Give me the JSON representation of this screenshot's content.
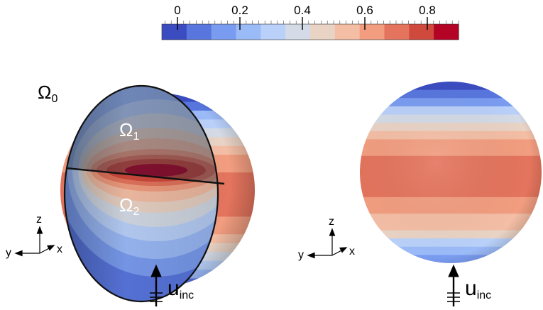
{
  "colorbar": {
    "tick_labels": [
      "0",
      "0.2",
      "0.4",
      "0.6",
      "0.8"
    ],
    "tick_values": [
      0,
      0.2,
      0.4,
      0.6,
      0.8
    ],
    "range": [
      -0.05,
      0.9
    ],
    "colors": [
      "#3b4cc0",
      "#5876de",
      "#7a9cf0",
      "#9bbaf8",
      "#b9d0f9",
      "#d4dbe6",
      "#e9d3c5",
      "#f4bea5",
      "#f29d80",
      "#e4745d",
      "#cf4a3c",
      "#b40426"
    ]
  },
  "left_sphere": {
    "labels": {
      "omega0": {
        "symbol": "Ω",
        "sub": "0"
      },
      "omega1": {
        "symbol": "Ω",
        "sub": "1"
      },
      "omega2": {
        "symbol": "Ω",
        "sub": "2"
      }
    },
    "axes": {
      "z": "z",
      "y": "y",
      "x": "x"
    },
    "incident": {
      "symbol": "u",
      "sub": "inc"
    }
  },
  "right_sphere": {
    "axes": {
      "z": "z",
      "y": "y",
      "x": "x"
    },
    "incident": {
      "symbol": "u",
      "sub": "inc"
    }
  }
}
